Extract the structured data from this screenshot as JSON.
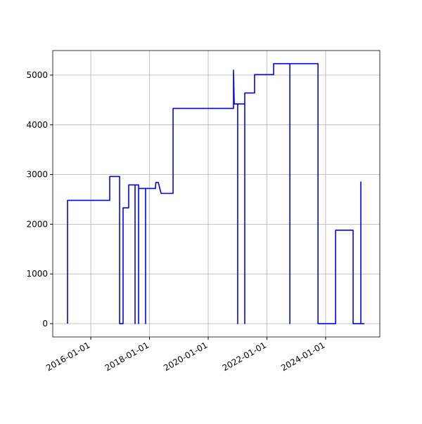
{
  "chart_data": {
    "type": "line",
    "x": [
      "2015-03-18",
      "2015-03-18",
      "2016-08-24",
      "2016-08-24",
      "2016-12-25",
      "2016-12-25",
      "2017-02-06",
      "2017-02-06",
      "2017-04-17",
      "2017-04-17",
      "2017-07-05",
      "2017-07-05",
      "2017-07-05",
      "2017-08-18",
      "2017-08-18",
      "2017-08-18",
      "2017-11-13",
      "2017-11-13",
      "2017-11-13",
      "2018-03-16",
      "2018-03-20",
      "2018-04-20",
      "2018-05-25",
      "2018-10-21",
      "2018-10-21",
      "2020-11-11",
      "2020-11-11",
      "2020-11-20",
      "2021-01-02",
      "2021-01-02",
      "2021-01-02",
      "2021-03-31",
      "2021-03-31",
      "2021-03-31",
      "2021-07-31",
      "2021-07-31",
      "2022-03-25",
      "2022-03-25",
      "2022-10-13",
      "2022-10-13",
      "2022-10-13",
      "2023-09-28",
      "2023-09-28",
      "2024-05-04",
      "2024-05-04",
      "2024-12-08",
      "2024-12-08",
      "2025-03-14",
      "2025-03-14",
      "2025-03-14",
      "2025-04-27"
    ],
    "series": [
      {
        "color": "#0000ff",
        "values": [
          0,
          2480,
          2480,
          2960,
          2960,
          0,
          0,
          2330,
          2330,
          2790,
          2790,
          0,
          2790,
          2790,
          0,
          2720,
          2720,
          0,
          2720,
          2720,
          2840,
          2840,
          2620,
          2620,
          4330,
          4330,
          5100,
          4420,
          4420,
          0,
          4420,
          4420,
          0,
          4640,
          4640,
          5010,
          5010,
          5230,
          5230,
          0,
          5230,
          5230,
          0,
          0,
          1880,
          1880,
          0,
          0,
          2850,
          0,
          0
        ]
      }
    ],
    "xlim": [
      "2014-09-15",
      "2025-11-05"
    ],
    "xticks": [
      "2016-01-01",
      "2018-01-01",
      "2020-01-01",
      "2022-01-01",
      "2024-01-01"
    ],
    "ylim": [
      -268,
      5494
    ],
    "yticks": [
      0,
      1000,
      2000,
      3000,
      4000,
      5000
    ],
    "grid": true
  }
}
